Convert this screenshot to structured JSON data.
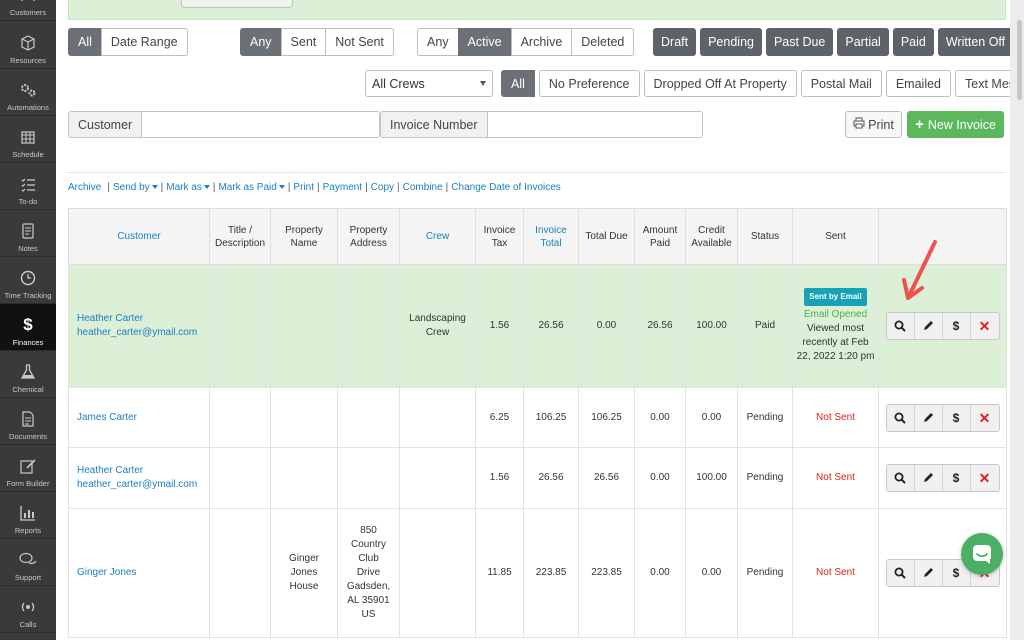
{
  "sidebar": {
    "items": [
      {
        "label": "Customers",
        "icon": "users-icon"
      },
      {
        "label": "Resources",
        "icon": "box-icon"
      },
      {
        "label": "Automations",
        "icon": "gears-icon"
      },
      {
        "label": "Schedule",
        "icon": "calendar-icon"
      },
      {
        "label": "To-do",
        "icon": "checklist-icon"
      },
      {
        "label": "Notes",
        "icon": "notes-icon"
      },
      {
        "label": "Time Tracking",
        "icon": "clock-icon"
      },
      {
        "label": "Finances",
        "icon": "dollar-icon"
      },
      {
        "label": "Chemical",
        "icon": "flask-icon"
      },
      {
        "label": "Documents",
        "icon": "document-icon"
      },
      {
        "label": "Form Builder",
        "icon": "form-icon"
      },
      {
        "label": "Reports",
        "icon": "chart-icon"
      },
      {
        "label": "Support",
        "icon": "chat-icon"
      },
      {
        "label": "Calls",
        "icon": "phone-icon"
      }
    ],
    "active": "Finances"
  },
  "filters": {
    "date": {
      "all": "All",
      "range": "Date Range"
    },
    "sent": {
      "any": "Any",
      "sent": "Sent",
      "not_sent": "Not Sent"
    },
    "state": {
      "any": "Any",
      "active": "Active",
      "archive": "Archive",
      "deleted": "Deleted"
    },
    "status": [
      "Draft",
      "Pending",
      "Past Due",
      "Partial",
      "Paid",
      "Written Off"
    ],
    "crew_select": "All Crews",
    "delivery": {
      "all": "All",
      "no_pref": "No Preference",
      "dropped": "Dropped Off At Property",
      "postal": "Postal Mail",
      "emailed": "Emailed",
      "text": "Text Message"
    }
  },
  "search": {
    "customer_label": "Customer",
    "invoice_label": "Invoice Number"
  },
  "buttons": {
    "print": "Print",
    "new_invoice": "New Invoice"
  },
  "actions": {
    "archive": "Archive",
    "send_by": "Send by",
    "mark_as": "Mark as",
    "mark_paid": "Mark as Paid",
    "print": "Print",
    "payment": "Payment",
    "copy": "Copy",
    "combine": "Combine",
    "change_date": "Change Date of Invoices"
  },
  "table": {
    "headers": {
      "customer": "Customer",
      "title": "Title / Description",
      "prop_name": "Property Name",
      "prop_addr": "Property Address",
      "crew": "Crew",
      "tax": "Invoice Tax",
      "total": "Invoice Total",
      "due": "Total Due",
      "paid": "Amount Paid",
      "credit": "Credit Available",
      "status": "Status",
      "sent": "Sent"
    },
    "rows": [
      {
        "name": "Heather Carter",
        "email": "heather_carter@ymail.com",
        "title": "",
        "prop_name": "",
        "prop_addr": "",
        "crew": "Landscaping Crew",
        "tax": "1.56",
        "total": "26.56",
        "due": "0.00",
        "paid": "26.56",
        "credit": "100.00",
        "status": "Paid",
        "sent_badge": "Sent by Email",
        "sent_opened": "Email Opened",
        "sent_viewed": "Viewed most recently at Feb 22, 2022 1:20 pm"
      },
      {
        "name": "James Carter",
        "email": "",
        "title": "",
        "prop_name": "",
        "prop_addr": "",
        "crew": "",
        "tax": "6.25",
        "total": "106.25",
        "due": "106.25",
        "paid": "0.00",
        "credit": "0.00",
        "status": "Pending",
        "sent": "Not Sent"
      },
      {
        "name": "Heather Carter",
        "email": "heather_carter@ymail.com",
        "title": "",
        "prop_name": "",
        "prop_addr": "",
        "crew": "",
        "tax": "1.56",
        "total": "26.56",
        "due": "26.56",
        "paid": "0.00",
        "credit": "100.00",
        "status": "Pending",
        "sent": "Not Sent"
      },
      {
        "name": "Ginger Jones",
        "email": "",
        "title": "",
        "prop_name": "Ginger Jones House",
        "prop_addr": "850 Country Club Drive Gadsden, AL 35901 US",
        "crew": "",
        "tax": "11.85",
        "total": "223.85",
        "due": "223.85",
        "paid": "0.00",
        "credit": "0.00",
        "status": "Pending",
        "sent": "Not Sent"
      }
    ]
  },
  "colors": {
    "accent": "#1a7fbf",
    "green": "#5cb85c",
    "highlight": "#dcefd7",
    "danger": "#d9231f"
  }
}
